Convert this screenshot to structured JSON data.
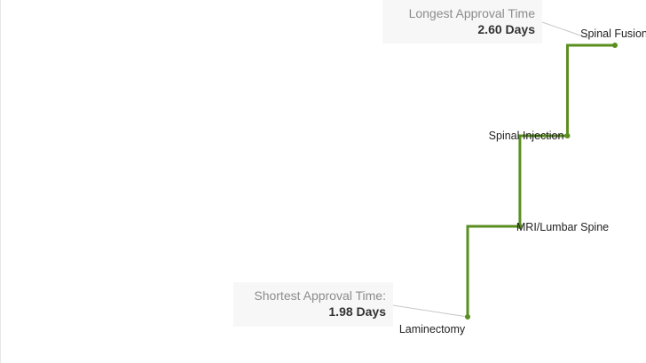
{
  "chart_data": {
    "type": "line",
    "step": true,
    "categories": [
      "Laminectomy",
      "MRI/Lumbar Spine",
      "Spinal Injection",
      "Spinal Fusion"
    ],
    "values": [
      1.98,
      2.2,
      2.4,
      2.6
    ],
    "xlabel": "",
    "ylabel": "",
    "grid": false,
    "colors": {
      "line": "#5a8f1f",
      "point": "#5a8f1f"
    },
    "annotations": {
      "longest": {
        "label": "Longest Approval Time",
        "value": "2.60 Days"
      },
      "shortest": {
        "label": "Shortest Approval Time:",
        "value": "1.98 Days"
      }
    }
  }
}
